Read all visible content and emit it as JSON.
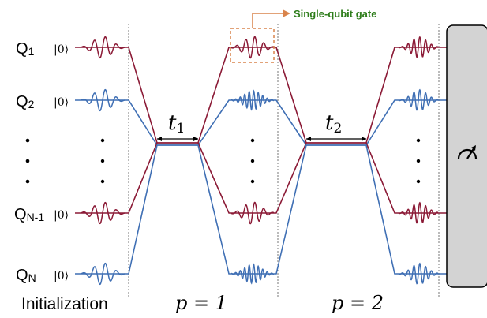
{
  "qubits": [
    {
      "main": "Q",
      "sub": "1",
      "ket": "|0⟩",
      "color_key": "red"
    },
    {
      "main": "Q",
      "sub": "2",
      "ket": "|0⟩",
      "color_key": "blue"
    },
    {
      "main": "Q",
      "sub": "N-1",
      "ket": "|0⟩",
      "color_key": "red"
    },
    {
      "main": "Q",
      "sub": "N",
      "ket": "|0⟩",
      "color_key": "blue"
    }
  ],
  "vdots": "⋮",
  "bottom_labels": {
    "initialization": "Initialization",
    "p1": "p = 1",
    "p2": "p = 2"
  },
  "time_labels": {
    "t1_main": "t",
    "t1_sub": "1",
    "t2_main": "t",
    "t2_sub": "2"
  },
  "callout": {
    "text": "Single-qubit gate"
  },
  "measurement": {
    "icon": "meter-icon"
  },
  "colors": {
    "red": "#8b1a36",
    "blue": "#3f6fb4",
    "callout_text": "#2e7d1b",
    "callout_box": "#d9844b",
    "measure_fill": "#d3d3d3",
    "dotted": "#777777"
  }
}
